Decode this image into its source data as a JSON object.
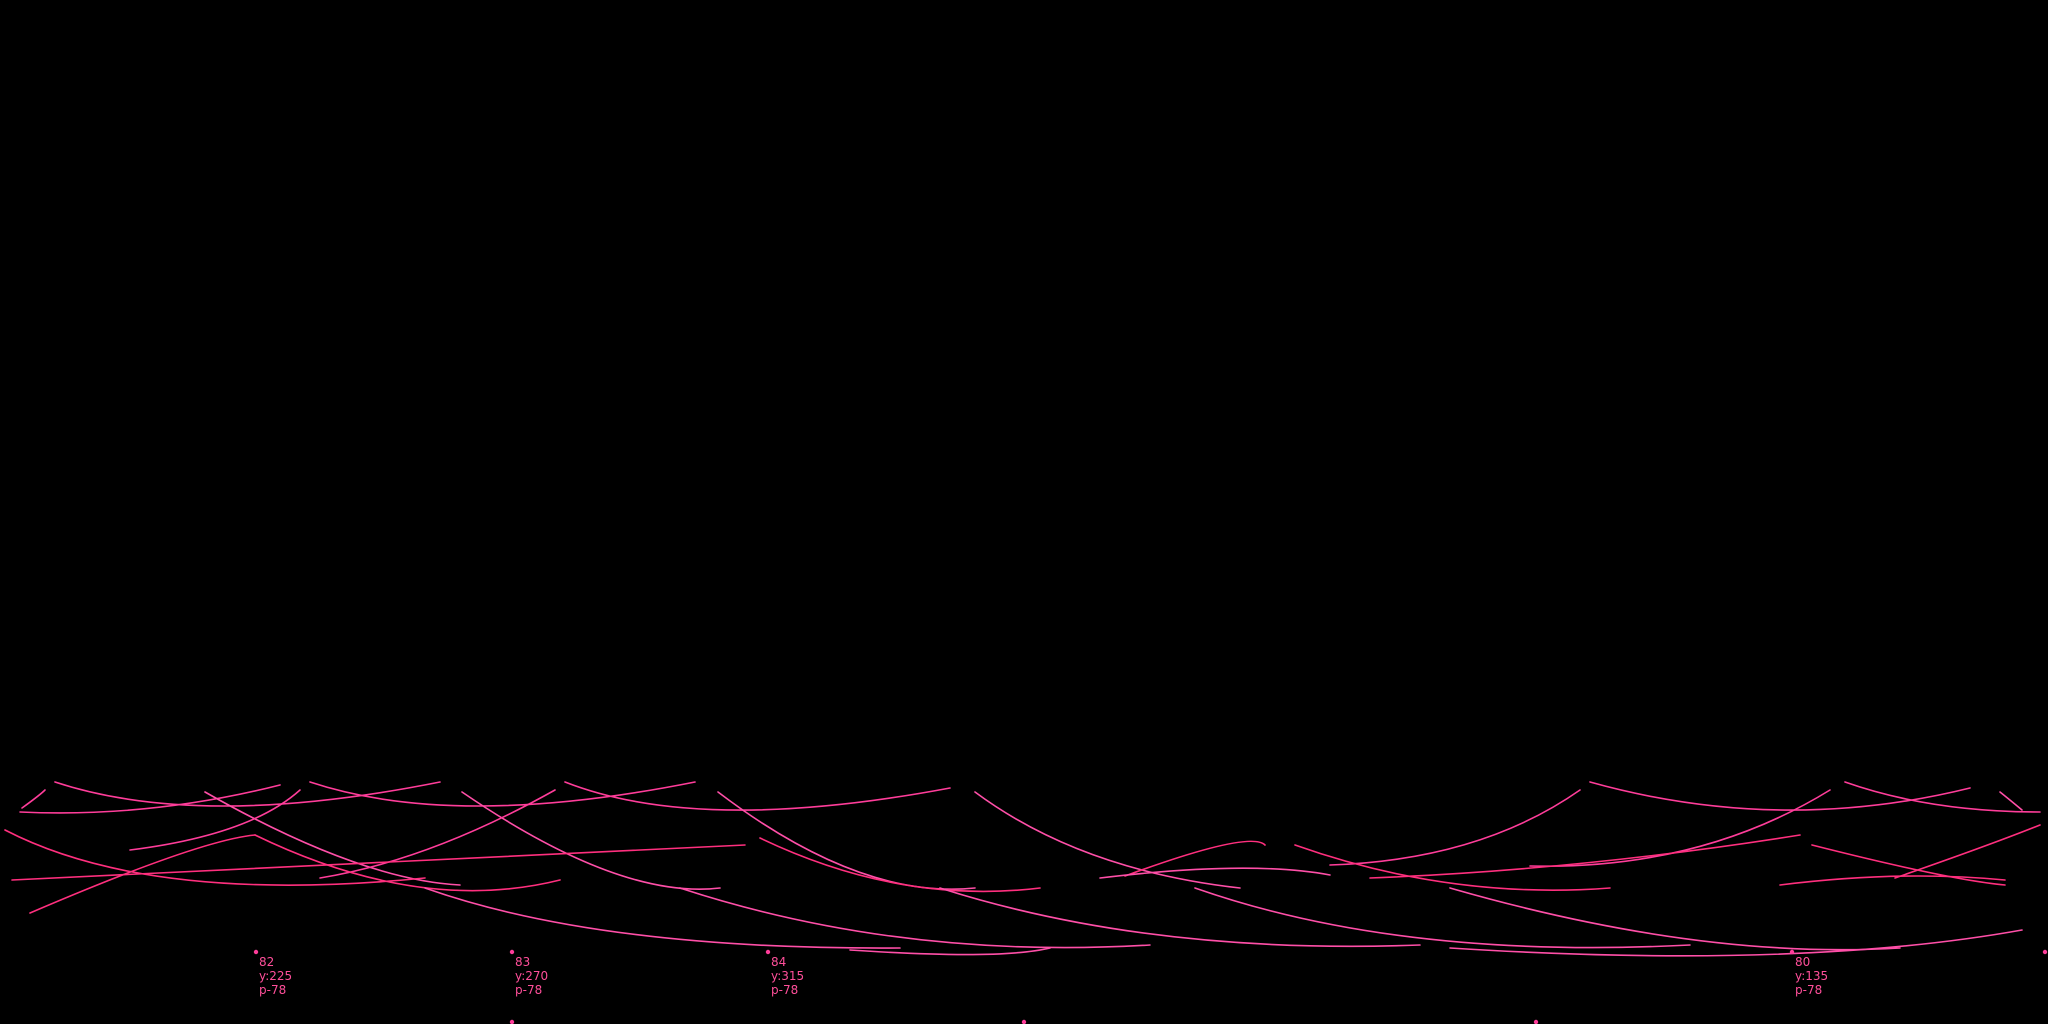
{
  "colors": {
    "background": "#000000",
    "arc_a": "#ff3d9a",
    "arc_b": "#ff4fa8",
    "arc_c": "#ff2f7e",
    "label": "#ff4f9a"
  },
  "nodes": [
    {
      "id": "82",
      "y": "y:225",
      "p": "p-78"
    },
    {
      "id": "83",
      "y": "y:270",
      "p": "p-78"
    },
    {
      "id": "84",
      "y": "y:315",
      "p": "p-78"
    },
    {
      "id": "80",
      "y": "y:135",
      "p": "p-78"
    }
  ]
}
